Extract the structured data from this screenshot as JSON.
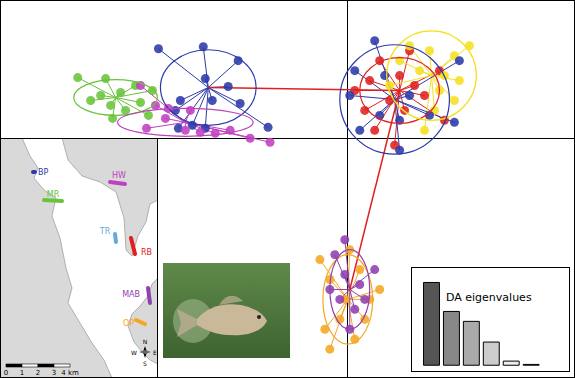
{
  "chart_data": [
    {
      "type": "scatter",
      "xlim": [
        -34.8,
        22.7
      ],
      "ylim": [
        -24,
        13.8
      ],
      "tick_labels": false,
      "series": [
        {
          "color": "#2b3aa8",
          "centroid": [
            -14,
            5.1
          ],
          "ellipse_radii": [
            4.8,
            3.8
          ],
          "x": [
            -19,
            -14.5,
            -11,
            -12,
            -13.6,
            -14.3,
            -16.8,
            -17.3,
            -15.6,
            -14.3,
            -17,
            -8,
            -10.8
          ],
          "y": [
            9,
            9.2,
            7.8,
            5.2,
            3.8,
            6,
            3.8,
            2.8,
            1.3,
            1,
            1,
            1.1,
            3.5
          ]
        },
        {
          "color": "#6ac43a",
          "centroid": [
            -23.3,
            4.1
          ],
          "ellipse_radii": [
            4.2,
            1.8
          ],
          "x": [
            -27.1,
            -24.3,
            -24.8,
            -25.8,
            -23.8,
            -22.8,
            -22.3,
            -20.8,
            -20,
            -23.6,
            -19.6,
            -21.3
          ],
          "y": [
            6.1,
            6,
            4.3,
            3.8,
            3.3,
            4.6,
            2.8,
            3.6,
            2.3,
            2,
            4.8,
            5.3
          ]
        },
        {
          "color": "#c040c0",
          "centroid": [
            -16.3,
            1.6
          ],
          "ellipse_radii": [
            6.8,
            1.4
          ],
          "x": [
            -20.8,
            -19.3,
            -18,
            -15.8,
            -18.3,
            -16.3,
            -14.8,
            -13.3,
            -11.8,
            -9.8,
            -7.8,
            -20.2
          ],
          "y": [
            5.3,
            3.3,
            3,
            2.8,
            2,
            0.8,
            0.6,
            0.5,
            0.8,
            0,
            -0.4,
            1
          ]
        },
        {
          "color": "#e02020",
          "centroid": [
            5.2,
            4.8
          ],
          "ellipse_radii": [
            4,
            3.3
          ],
          "x": [
            2.2,
            3.2,
            5.2,
            6.7,
            4.2,
            5.7,
            7.7,
            9.2,
            1.7,
            2.7,
            4.7,
            9.7,
            6.2,
            0.7
          ],
          "y": [
            5.8,
            7.8,
            6.3,
            5.3,
            3.8,
            2.8,
            4.3,
            6.8,
            2.8,
            0.8,
            -0.7,
            1.8,
            8.8,
            4.8
          ]
        },
        {
          "color": "#f5e020",
          "centroid": [
            8.4,
            6.3
          ],
          "ellipse_radii": [
            4.5,
            4.5
          ],
          "x": [
            6.2,
            8.2,
            10.7,
            12.2,
            9.2,
            10.7,
            7.2,
            9.7,
            11.2,
            8.7,
            5.2,
            4.2,
            7.7
          ],
          "y": [
            9.3,
            8.8,
            8.3,
            9.3,
            4.8,
            3.8,
            6.8,
            6.3,
            5.8,
            2.8,
            7.8,
            5.3,
            0.8
          ]
        },
        {
          "color": "#2b3aa8",
          "centroid": [
            4.7,
            3.9
          ],
          "ellipse_radii": [
            5.5,
            5.5
          ],
          "x": [
            0.7,
            1.2,
            3.2,
            5.2,
            8.2,
            10.7,
            2.7,
            6.2,
            3.7,
            11.2,
            5.2,
            0.2
          ],
          "y": [
            6.8,
            0.8,
            2.3,
            1.8,
            2.3,
            1.6,
            9.8,
            4.3,
            6.3,
            7.8,
            -1.2,
            4.3
          ]
        },
        {
          "color": "#f5a623",
          "centroid": [
            0,
            -16.2
          ],
          "ellipse_radii": [
            2.5,
            4.5
          ],
          "x": [
            -2.8,
            -1.8,
            -0.3,
            1.2,
            2.2,
            -0.8,
            -2.3,
            0.7,
            3.2,
            0.2,
            -1.8,
            1.7
          ],
          "y": [
            -12.2,
            -14.2,
            -16.2,
            -13.2,
            -16.2,
            -18.2,
            -19.2,
            -20.2,
            -15.2,
            -11.2,
            -21.2,
            -18.2
          ]
        },
        {
          "color": "#9040b0",
          "centroid": [
            0.2,
            -15.2
          ],
          "ellipse_radii": [
            2,
            4
          ],
          "x": [
            -1.3,
            -0.3,
            1.2,
            -0.8,
            0.7,
            0.2,
            1.7,
            -1.8,
            2.7,
            -0.3
          ],
          "y": [
            -11.7,
            -13.7,
            -14.7,
            -16.2,
            -17.2,
            -19.2,
            -16.2,
            -15.2,
            -13.2,
            -10.2
          ]
        }
      ],
      "links": {
        "pairs": [
          [
            0,
            3
          ],
          [
            3,
            7
          ]
        ],
        "color": "#e02020"
      }
    },
    {
      "type": "bar",
      "title": "DA eigenvalues",
      "x": [
        1,
        2,
        3,
        4,
        5,
        6
      ],
      "values": [
        1,
        0.65,
        0.53,
        0.28,
        0.05,
        0.01
      ],
      "colors": [
        "#555555",
        "#888888",
        "#aaaaaa",
        "#cccccc",
        "#eeeeee",
        "#ffffff"
      ],
      "xlim": [
        0,
        7.9
      ],
      "ylim": [
        -0.07,
        1.18
      ],
      "tick_labels": false
    }
  ],
  "map": {
    "sites": [
      {
        "label": "BP",
        "color": "#2b3aa8"
      },
      {
        "label": "MR",
        "color": "#6ac43a"
      },
      {
        "label": "HW",
        "color": "#c040c0"
      },
      {
        "label": "TR",
        "color": "#66aadd"
      },
      {
        "label": "RB",
        "color": "#e02020"
      },
      {
        "label": "MAB",
        "color": "#9040b0"
      },
      {
        "label": "OP",
        "color": "#f5a623"
      }
    ],
    "scale_labels": [
      "0",
      "1",
      "2",
      "3",
      "4 km"
    ],
    "compass": [
      "N",
      "W",
      "E",
      "S"
    ]
  }
}
